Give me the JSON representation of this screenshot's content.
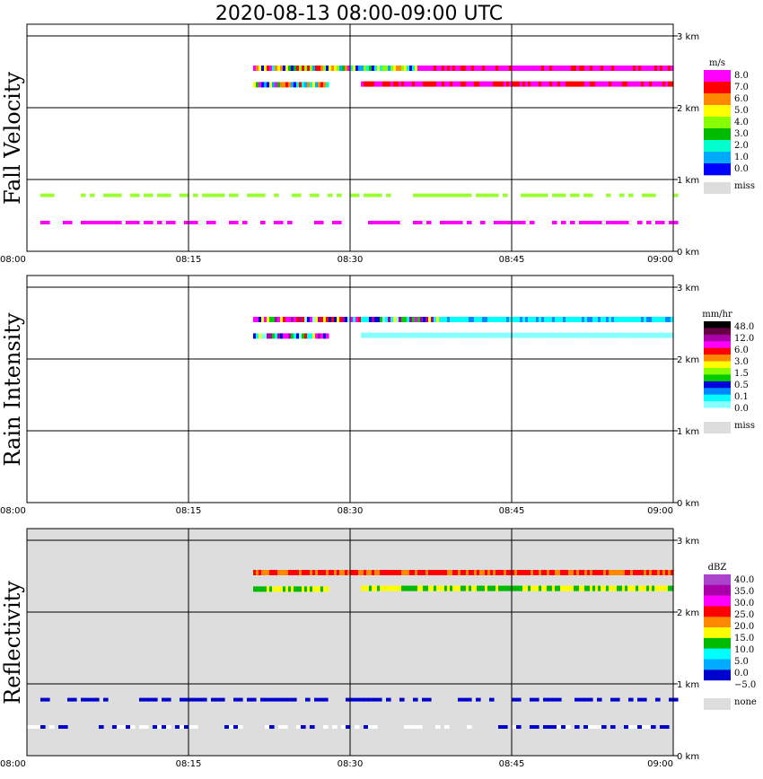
{
  "title": "2020-08-13   08:00-09:00 UTC",
  "x_ticks": [
    "08:00",
    "08:15",
    "08:30",
    "08:45",
    "09:00"
  ],
  "y_ticks": [
    "0 km",
    "1 km",
    "2 km",
    "3 km"
  ],
  "panels": [
    {
      "key": "fall",
      "label": "Fall Velocity",
      "legend_unit": "m/s",
      "legend_labels": [
        "8.0",
        "7.0",
        "6.0",
        "5.0",
        "4.0",
        "3.0",
        "2.0",
        "1.0",
        "0.0"
      ],
      "legend_colors": [
        "#ff00ff",
        "#ff0000",
        "#ff8800",
        "#ffff00",
        "#88ff00",
        "#00bb00",
        "#00ffcc",
        "#00aaff",
        "#0000ff"
      ],
      "miss_label": "miss",
      "background": "#ffffff"
    },
    {
      "key": "rain",
      "label": "Rain Intensity",
      "legend_unit": "mm/hr",
      "legend_labels": [
        "48.0",
        "12.0",
        "6.0",
        "3.0",
        "1.5",
        "0.5",
        "0.1",
        "0.0"
      ],
      "legend_colors": [
        "#000000",
        "#660044",
        "#aa00aa",
        "#ff00ff",
        "#ff0000",
        "#ff8800",
        "#ffff00",
        "#88ff00",
        "#00cc00",
        "#0000dd",
        "#0088ff",
        "#00ffff",
        "#88ffff",
        "#ffffff"
      ],
      "miss_label": "miss",
      "background": "#ffffff"
    },
    {
      "key": "refl",
      "label": "Reflectivity",
      "legend_unit": "dBZ",
      "legend_labels": [
        "40.0",
        "35.0",
        "30.0",
        "25.0",
        "20.0",
        "15.0",
        "10.0",
        "5.0",
        "0.0",
        "−5.0"
      ],
      "legend_colors": [
        "#aa44cc",
        "#aa00aa",
        "#ff00ff",
        "#ff0000",
        "#ff8800",
        "#ffff00",
        "#00bb00",
        "#00ffff",
        "#00aaff",
        "#0000cc",
        "#ffffff"
      ],
      "miss_label": "none",
      "background": "#dddddd"
    }
  ],
  "chart_data": [
    {
      "type": "heatmap",
      "title": "2020-08-13   08:00-09:00 UTC",
      "ylabel": "Fall Velocity",
      "unit": "m/s",
      "x_range": [
        "08:00",
        "09:00"
      ],
      "y_range_km": [
        0,
        3.2
      ],
      "layers": [
        {
          "t_start": "08:21",
          "t_end": "09:00",
          "height_km": 2.55,
          "range": "0.0–8.0"
        },
        {
          "t_start": "08:21",
          "t_end": "08:28",
          "height_km": 2.32,
          "range": "0.0–8.0"
        },
        {
          "t_start": "08:31",
          "t_end": "09:00",
          "height_km": 2.33,
          "range": "7.0–8.0"
        },
        {
          "t_start": "08:00",
          "t_end": "09:00",
          "height_km": 0.4,
          "range": "8.0"
        },
        {
          "t_start": "08:00",
          "t_end": "09:00",
          "height_km": 0.78,
          "range": "4.0–5.0"
        }
      ]
    },
    {
      "type": "heatmap",
      "ylabel": "Rain Intensity",
      "unit": "mm/hr",
      "x_range": [
        "08:00",
        "09:00"
      ],
      "y_range_km": [
        0,
        3.2
      ],
      "layers": [
        {
          "t_start": "08:21",
          "t_end": "09:00",
          "height_km": 2.55,
          "range": "0.1–48.0"
        },
        {
          "t_start": "08:21",
          "t_end": "08:28",
          "height_km": 2.32,
          "range": "0.1–12.0"
        },
        {
          "t_start": "08:31",
          "t_end": "09:00",
          "height_km": 2.33,
          "range": "0.0–0.1"
        }
      ]
    },
    {
      "type": "heatmap",
      "ylabel": "Reflectivity",
      "unit": "dBZ",
      "x_range": [
        "08:00",
        "09:00"
      ],
      "y_range_km": [
        0,
        3.2
      ],
      "layers": [
        {
          "t_start": "08:21",
          "t_end": "09:00",
          "height_km": 2.55,
          "range": "20.0–30.0"
        },
        {
          "t_start": "08:21",
          "t_end": "08:28",
          "height_km": 2.32,
          "range": "15.0–20.0"
        },
        {
          "t_start": "08:31",
          "t_end": "09:00",
          "height_km": 2.33,
          "range": "15.0–20.0"
        },
        {
          "t_start": "08:00",
          "t_end": "09:00",
          "height_km": 0.78,
          "range": "−5.0–0.0"
        },
        {
          "t_start": "08:00",
          "t_end": "09:00",
          "height_km": 0.4,
          "range": "−5.0–0.0"
        }
      ]
    }
  ]
}
